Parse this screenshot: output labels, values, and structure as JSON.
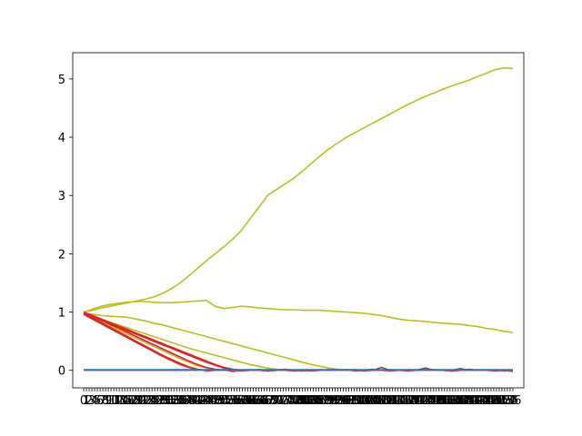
{
  "chart_data": {
    "type": "line",
    "title": "",
    "xlabel": "",
    "ylabel": "",
    "xlim": [
      -4,
      161
    ],
    "ylim": [
      -0.3,
      5.45
    ],
    "yticks": [
      0,
      1,
      2,
      3,
      4,
      5
    ],
    "grid": false,
    "legend": "none",
    "x_tick_labels_first": "0",
    "x_tick_labels_last": "7",
    "series": [
      {
        "color": "#bcbd22",
        "values": [
          1.0,
          1.03,
          1.07,
          1.1,
          1.13,
          1.16,
          1.19,
          1.22,
          1.26,
          1.32,
          1.4,
          1.5,
          1.62,
          1.75,
          1.88,
          2.0,
          2.12,
          2.25,
          2.4,
          2.6,
          2.8,
          3.0,
          3.1,
          3.2,
          3.3,
          3.42,
          3.55,
          3.68,
          3.8,
          3.9,
          4.0,
          4.08,
          4.16,
          4.24,
          4.32,
          4.4,
          4.48,
          4.56,
          4.63,
          4.7,
          4.76,
          4.82,
          4.88,
          4.93,
          4.98,
          5.04,
          5.1,
          5.16,
          5.19,
          5.18
        ]
      },
      {
        "color": "#bcbd22",
        "values": [
          1.0,
          1.05,
          1.1,
          1.13,
          1.15,
          1.17,
          1.18,
          1.18,
          1.17,
          1.16,
          1.16,
          1.17,
          1.18,
          1.19,
          1.2,
          1.1,
          1.06,
          1.08,
          1.1,
          1.09,
          1.07,
          1.06,
          1.05,
          1.04,
          1.04,
          1.03,
          1.03,
          1.03,
          1.02,
          1.01,
          1.0,
          0.99,
          0.98,
          0.96,
          0.94,
          0.91,
          0.88,
          0.86,
          0.85,
          0.84,
          0.82,
          0.81,
          0.8,
          0.79,
          0.77,
          0.75,
          0.72,
          0.7,
          0.67,
          0.65
        ]
      },
      {
        "color": "#bcbd22",
        "values": [
          0.98,
          0.96,
          0.94,
          0.93,
          0.92,
          0.91,
          0.88,
          0.85,
          0.81,
          0.78,
          0.74,
          0.7,
          0.66,
          0.62,
          0.58,
          0.54,
          0.5,
          0.46,
          0.42,
          0.38,
          0.34,
          0.3,
          0.26,
          0.22,
          0.18,
          0.14,
          0.1,
          0.07,
          0.04,
          0.02,
          0.01,
          0.0,
          0.0,
          0.0,
          0.0,
          0.0,
          0.0,
          0.0,
          0.0,
          0.0,
          0.0,
          0.0,
          0.0,
          0.0,
          0.0,
          0.0,
          0.0,
          0.0,
          0.0,
          0.0
        ]
      },
      {
        "color": "#bcbd22",
        "values": [
          0.97,
          0.93,
          0.88,
          0.83,
          0.78,
          0.73,
          0.68,
          0.63,
          0.58,
          0.53,
          0.48,
          0.43,
          0.38,
          0.34,
          0.3,
          0.26,
          0.22,
          0.18,
          0.14,
          0.1,
          0.07,
          0.04,
          0.02,
          0.01,
          0.0,
          0.0,
          0.0,
          0.0,
          0.0,
          0.0,
          0.0,
          0.0,
          0.0,
          0.0,
          0.0,
          0.0,
          0.0,
          0.0,
          0.0,
          0.0,
          0.0,
          0.0,
          0.0,
          0.0,
          0.0,
          0.0,
          0.0,
          0.0,
          0.0,
          0.0
        ]
      },
      {
        "color": "#bcbd22",
        "values": [
          0.96,
          0.9,
          0.83,
          0.76,
          0.69,
          0.62,
          0.55,
          0.48,
          0.41,
          0.34,
          0.27,
          0.2,
          0.14,
          0.08,
          0.04,
          0.01,
          0.0,
          0.0,
          0.0,
          0.0,
          0.0,
          0.0,
          0.0,
          0.0,
          0.0,
          0.0,
          0.0,
          0.0,
          0.0,
          0.0,
          0.0,
          0.0,
          0.0,
          0.0,
          0.0,
          0.0,
          0.0,
          0.0,
          0.0,
          0.0,
          0.0,
          0.0,
          0.0,
          0.0,
          0.0,
          0.0,
          0.0,
          0.0,
          0.0,
          0.0
        ]
      },
      {
        "color": "#bcbd22",
        "values": [
          0.99,
          0.94,
          0.88,
          0.82,
          0.76,
          0.7,
          0.64,
          0.58,
          0.52,
          0.46,
          0.4,
          0.34,
          0.28,
          0.22,
          0.16,
          0.1,
          0.05,
          0.02,
          0.0,
          0.0,
          0.0,
          0.0,
          0.0,
          0.0,
          0.0,
          0.0,
          0.0,
          0.0,
          0.0,
          0.0,
          0.0,
          0.0,
          0.0,
          0.0,
          0.0,
          0.0,
          0.0,
          0.0,
          0.0,
          0.0,
          0.0,
          0.0,
          0.0,
          0.0,
          0.0,
          0.0,
          0.0,
          0.0,
          0.0,
          0.0
        ]
      },
      {
        "color": "#d62728",
        "values": [
          0.98,
          0.92,
          0.86,
          0.8,
          0.74,
          0.68,
          0.62,
          0.56,
          0.5,
          0.44,
          0.38,
          0.32,
          0.26,
          0.2,
          0.14,
          0.09,
          0.04,
          0.01,
          -0.01,
          0.0,
          0.01,
          -0.01,
          0.0,
          0.01,
          0.0,
          -0.01,
          0.0,
          0.01,
          0.0,
          0.0,
          0.01,
          -0.01,
          0.0,
          0.02,
          0.0,
          -0.01,
          0.0,
          0.01,
          0.0,
          0.0,
          0.01,
          0.0,
          -0.01,
          0.0,
          0.02,
          0.0,
          0.0,
          -0.01,
          0.0,
          0.0
        ]
      },
      {
        "color": "#d62728",
        "values": [
          0.97,
          0.9,
          0.82,
          0.74,
          0.66,
          0.58,
          0.5,
          0.42,
          0.34,
          0.26,
          0.19,
          0.12,
          0.06,
          0.02,
          -0.01,
          0.0,
          0.01,
          -0.02,
          0.0,
          0.01,
          0.0,
          -0.01,
          0.0,
          0.02,
          0.0,
          0.0,
          -0.01,
          0.0,
          0.01,
          0.0,
          0.0,
          0.01,
          -0.01,
          0.0,
          0.0,
          0.01,
          0.0,
          -0.01,
          0.0,
          0.04,
          0.0,
          0.0,
          -0.01,
          0.0,
          0.01,
          0.0,
          0.0,
          0.01,
          -0.01,
          0.0
        ]
      },
      {
        "color": "#d62728",
        "values": [
          1.0,
          0.94,
          0.88,
          0.82,
          0.76,
          0.7,
          0.64,
          0.58,
          0.52,
          0.46,
          0.4,
          0.34,
          0.28,
          0.22,
          0.16,
          0.1,
          0.05,
          0.02,
          0.0,
          0.0,
          0.0,
          0.01,
          0.0,
          0.0,
          -0.01,
          0.0,
          0.0,
          0.0,
          0.01,
          0.0,
          0.0,
          0.0,
          0.0,
          0.0,
          0.05,
          0.0,
          0.0,
          0.0,
          0.0,
          0.0,
          0.0,
          0.0,
          0.0,
          0.03,
          0.0,
          0.0,
          0.0,
          0.0,
          0.0,
          0.0
        ]
      },
      {
        "color": "#d62728",
        "values": [
          0.96,
          0.88,
          0.8,
          0.72,
          0.64,
          0.56,
          0.48,
          0.4,
          0.32,
          0.24,
          0.17,
          0.1,
          0.05,
          0.01,
          0.0,
          0.0,
          0.0,
          0.0,
          0.0,
          0.0,
          0.0,
          0.0,
          0.0,
          0.0,
          0.0,
          0.0,
          0.0,
          0.0,
          0.0,
          0.0,
          0.0,
          0.0,
          0.0,
          0.0,
          0.0,
          0.0,
          0.0,
          0.0,
          0.0,
          0.0,
          0.0,
          0.0,
          0.0,
          0.0,
          0.0,
          0.0,
          0.0,
          0.0,
          0.0,
          -0.02
        ]
      },
      {
        "color": "#d62728",
        "values": [
          0.99,
          0.93,
          0.86,
          0.79,
          0.72,
          0.65,
          0.58,
          0.51,
          0.44,
          0.37,
          0.3,
          0.23,
          0.16,
          0.1,
          0.05,
          0.02,
          0.0,
          0.0,
          0.0,
          0.0,
          0.0,
          0.0,
          0.0,
          0.0,
          0.0,
          0.0,
          0.0,
          0.0,
          0.0,
          0.0,
          0.0,
          0.0,
          0.0,
          0.0,
          0.0,
          0.0,
          0.0,
          0.0,
          0.0,
          0.0,
          0.0,
          0.0,
          0.0,
          0.0,
          0.0,
          0.0,
          0.0,
          0.0,
          0.0,
          0.0
        ]
      },
      {
        "color": "#9467bd",
        "values": [
          0.0,
          0.0,
          0.0,
          0.0,
          0.0,
          0.0,
          0.0,
          0.0,
          0.0,
          0.0,
          0.0,
          0.0,
          0.0,
          0.0,
          0.0,
          0.0,
          0.0,
          0.0,
          0.0,
          0.0,
          0.0,
          0.0,
          0.0,
          0.0,
          0.0,
          0.0,
          0.0,
          0.0,
          0.0,
          0.0,
          0.0,
          0.0,
          0.0,
          0.0,
          0.0,
          0.0,
          0.0,
          0.0,
          0.0,
          0.0,
          0.0,
          0.0,
          0.0,
          0.0,
          0.0,
          0.0,
          0.0,
          0.0,
          0.0,
          0.0
        ]
      },
      {
        "color": "#1f77b4",
        "values": [
          0.01,
          0.01,
          0.01,
          0.01,
          0.01,
          0.01,
          0.01,
          0.01,
          0.01,
          0.01,
          0.01,
          0.01,
          0.01,
          0.01,
          0.01,
          0.01,
          0.01,
          0.01,
          0.01,
          0.01,
          0.01,
          0.01,
          0.01,
          0.01,
          0.01,
          0.01,
          0.01,
          0.01,
          0.01,
          0.01,
          0.01,
          0.01,
          0.01,
          0.01,
          0.01,
          0.01,
          0.01,
          0.01,
          0.01,
          0.01,
          0.01,
          0.01,
          0.01,
          0.01,
          0.01,
          0.01,
          0.01,
          0.01,
          0.01,
          0.01
        ]
      }
    ]
  }
}
